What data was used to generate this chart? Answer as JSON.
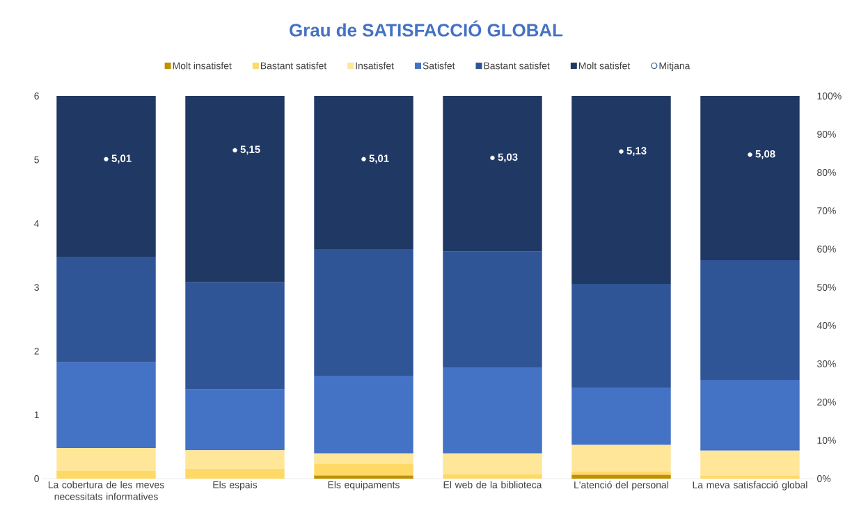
{
  "chart_data": {
    "type": "bar",
    "title": "Grau de SATISFACCIÓ GLOBAL",
    "categories": [
      "La cobertura de les meves necessitats informatives",
      "Els espais",
      "Els equipaments",
      "El web de la biblioteca",
      "L'atenció del personal",
      "La meva satisfacció global"
    ],
    "stacked": true,
    "legend": "top",
    "grid": false,
    "ylim": [
      0,
      6
    ],
    "yticks": [
      0,
      1,
      2,
      3,
      4,
      5,
      6
    ],
    "y2lim": [
      0,
      100
    ],
    "y2ticks": [
      {
        "value": 0,
        "label": "0%"
      },
      {
        "value": 10,
        "label": "10%"
      },
      {
        "value": 20,
        "label": "20%"
      },
      {
        "value": 30,
        "label": "30%"
      },
      {
        "value": 40,
        "label": "40%"
      },
      {
        "value": 50,
        "label": "50%"
      },
      {
        "value": 60,
        "label": "60%"
      },
      {
        "value": 70,
        "label": "70%"
      },
      {
        "value": 80,
        "label": "80%"
      },
      {
        "value": 90,
        "label": "90%"
      },
      {
        "value": 100,
        "label": "100%"
      }
    ],
    "series": [
      {
        "name": "Molt insatisfet",
        "color": "#bf9000",
        "axis": "y2",
        "values": [
          0,
          0,
          0.8,
          0,
          1,
          0
        ]
      },
      {
        "name": "Bastant satisfet",
        "color": "#ffd966",
        "axis": "y2",
        "values": [
          2,
          2.6,
          3,
          1.1,
          0.9,
          0.8
        ]
      },
      {
        "name": "Insatisfet",
        "color": "#ffe699",
        "axis": "y2",
        "values": [
          6,
          4.8,
          2.8,
          5.5,
          6.9,
          6.5
        ]
      },
      {
        "name": "Satisfet",
        "color": "#4472c4",
        "axis": "y2",
        "values": [
          22.4,
          15.9,
          20.3,
          22.5,
          15,
          18.5
        ]
      },
      {
        "name": "Bastant satisfet",
        "color": "#2f5597",
        "axis": "y2",
        "values": [
          27.6,
          28,
          33.1,
          30.2,
          27.1,
          31.3
        ]
      },
      {
        "name": "Molt satisfet",
        "color": "#203864",
        "axis": "y2",
        "values": [
          42,
          48.7,
          40,
          40.7,
          49.1,
          42.9
        ]
      },
      {
        "name": "Mitjana",
        "type": "scatter",
        "marker": "circle",
        "color": "#ffffff",
        "axis": "y",
        "values": [
          5.01,
          5.15,
          5.01,
          5.03,
          5.13,
          5.08
        ],
        "value_labels": [
          "5,01",
          "5,15",
          "5,01",
          "5,03",
          "5,13",
          "5,08"
        ]
      }
    ]
  }
}
